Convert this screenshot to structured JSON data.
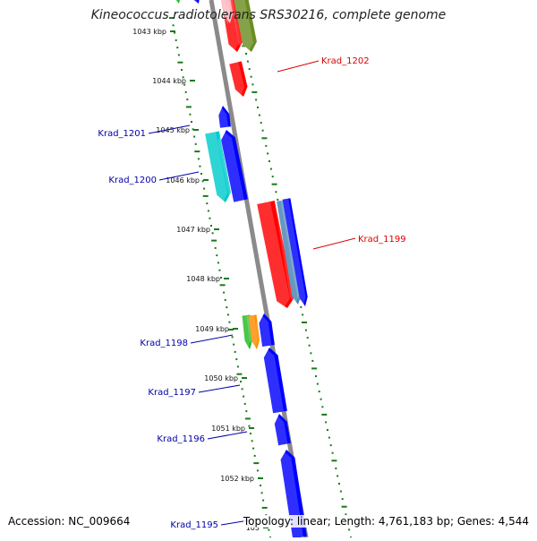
{
  "title": "Kineococcus radiotolerans SRS30216, complete genome",
  "footer": {
    "accession": "Accession: NC_009664",
    "topology": "Topology: linear; Length: 4,761,183 bp; Genes: 4,544"
  },
  "ticks": [
    "1043 kbp",
    "1044 kbp",
    "1045 kbp",
    "1046 kbp",
    "1047 kbp",
    "1048 kbp",
    "1049 kbp",
    "1050 kbp",
    "1051 kbp",
    "1052 kbp",
    "105"
  ],
  "gene_labels": [
    {
      "id": "krad-1202",
      "text": "Krad_1202",
      "color": "#dd0000",
      "side": "right"
    },
    {
      "id": "krad-1201",
      "text": "Krad_1201",
      "color": "#0000aa",
      "side": "left"
    },
    {
      "id": "krad-1200",
      "text": "Krad_1200",
      "color": "#0000aa",
      "side": "left"
    },
    {
      "id": "krad-1199",
      "text": "Krad_1199",
      "color": "#dd0000",
      "side": "right"
    },
    {
      "id": "krad-1198",
      "text": "Krad_1198",
      "color": "#0000aa",
      "side": "left"
    },
    {
      "id": "krad-1197",
      "text": "Krad_1197",
      "color": "#0000aa",
      "side": "left"
    },
    {
      "id": "krad-1196",
      "text": "Krad_1196",
      "color": "#0000aa",
      "side": "left"
    },
    {
      "id": "krad-1195",
      "text": "Krad_1195",
      "color": "#0000aa",
      "side": "left"
    }
  ],
  "colors": {
    "backbone": "#8a8a8a",
    "dots": "#1a7a1a",
    "blue": "#0000ff",
    "red": "#ff0000",
    "cyan": "#00cccc",
    "olive": "#6b8e23",
    "green": "#22bb22",
    "orange": "#ff8c00",
    "steelblue": "#4682b4",
    "pink": "#ffb6c1"
  }
}
